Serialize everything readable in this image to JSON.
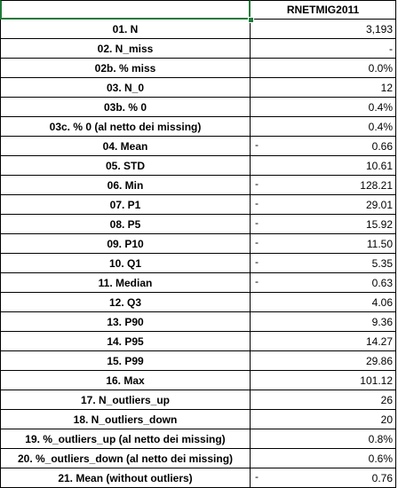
{
  "column_header": "RNETMIG2011",
  "rows": [
    {
      "label": "01. N",
      "sign": "",
      "value": "3,193"
    },
    {
      "label": "02. N_miss",
      "sign": "",
      "value": "-"
    },
    {
      "label": "02b. % miss",
      "sign": "",
      "value": "0.0%"
    },
    {
      "label": "03. N_0",
      "sign": "",
      "value": "12"
    },
    {
      "label": "03b. % 0",
      "sign": "",
      "value": "0.4%"
    },
    {
      "label": "03c. % 0 (al netto dei missing)",
      "sign": "",
      "value": "0.4%"
    },
    {
      "label": "04. Mean",
      "sign": "-",
      "value": "0.66"
    },
    {
      "label": "05. STD",
      "sign": "",
      "value": "10.61"
    },
    {
      "label": "06. Min",
      "sign": "-",
      "value": "128.21"
    },
    {
      "label": "07. P1",
      "sign": "-",
      "value": "29.01"
    },
    {
      "label": "08. P5",
      "sign": "-",
      "value": "15.92"
    },
    {
      "label": "09. P10",
      "sign": "-",
      "value": "11.50"
    },
    {
      "label": "10. Q1",
      "sign": "-",
      "value": "5.35"
    },
    {
      "label": "11. Median",
      "sign": "-",
      "value": "0.63"
    },
    {
      "label": "12. Q3",
      "sign": "",
      "value": "4.06"
    },
    {
      "label": "13. P90",
      "sign": "",
      "value": "9.36"
    },
    {
      "label": "14. P95",
      "sign": "",
      "value": "14.27"
    },
    {
      "label": "15. P99",
      "sign": "",
      "value": "29.86"
    },
    {
      "label": "16. Max",
      "sign": "",
      "value": "101.12"
    },
    {
      "label": "17. N_outliers_up",
      "sign": "",
      "value": "26"
    },
    {
      "label": "18. N_outliers_down",
      "sign": "",
      "value": "20"
    },
    {
      "label": "19. %_outliers_up (al netto dei missing)",
      "sign": "",
      "value": "0.8%"
    },
    {
      "label": "20. %_outliers_down (al netto dei missing)",
      "sign": "",
      "value": "0.6%"
    },
    {
      "label": "21. Mean (without outliers)",
      "sign": "-",
      "value": "0.76"
    }
  ]
}
